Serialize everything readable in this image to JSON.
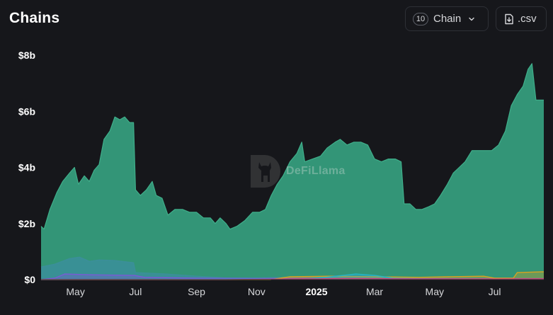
{
  "title": "Chains",
  "controls": {
    "chain_count": "10",
    "chain_label": "Chain",
    "csv_label": ".csv"
  },
  "watermark": "DeFiLlama",
  "colors": {
    "background": "#16171b",
    "main_series": "#339577",
    "secondary_series": "#3b8f9a"
  },
  "chart_data": {
    "type": "area",
    "title": "",
    "xlabel": "",
    "ylabel": "",
    "ylim": [
      0,
      8
    ],
    "y_unit": "billions USD",
    "y_ticks": [
      "$0",
      "$2b",
      "$4b",
      "$6b",
      "$8b"
    ],
    "x_ticks": [
      "May",
      "Jul",
      "Sep",
      "Nov",
      "2025",
      "Mar",
      "May",
      "Jul"
    ],
    "x_range": [
      "2024-03-27",
      "2025-08-20"
    ],
    "grid": false,
    "legend": "none",
    "series": [
      {
        "color": "#339577",
        "points": [
          [
            "2024-03-27",
            1.9
          ],
          [
            "2024-03-30",
            1.8
          ],
          [
            "2024-04-05",
            2.5
          ],
          [
            "2024-04-12",
            3.1
          ],
          [
            "2024-04-18",
            3.5
          ],
          [
            "2024-04-25",
            3.8
          ],
          [
            "2024-04-30",
            4.0
          ],
          [
            "2024-05-04",
            3.4
          ],
          [
            "2024-05-10",
            3.7
          ],
          [
            "2024-05-15",
            3.5
          ],
          [
            "2024-05-20",
            3.9
          ],
          [
            "2024-05-25",
            4.1
          ],
          [
            "2024-05-30",
            5.0
          ],
          [
            "2024-06-05",
            5.3
          ],
          [
            "2024-06-10",
            5.8
          ],
          [
            "2024-06-15",
            5.7
          ],
          [
            "2024-06-20",
            5.8
          ],
          [
            "2024-06-25",
            5.6
          ],
          [
            "2024-06-29",
            5.6
          ],
          [
            "2024-07-01",
            3.2
          ],
          [
            "2024-07-06",
            3.0
          ],
          [
            "2024-07-12",
            3.2
          ],
          [
            "2024-07-18",
            3.5
          ],
          [
            "2024-07-22",
            3.0
          ],
          [
            "2024-07-28",
            2.9
          ],
          [
            "2024-08-03",
            2.3
          ],
          [
            "2024-08-10",
            2.5
          ],
          [
            "2024-08-18",
            2.5
          ],
          [
            "2024-08-25",
            2.4
          ],
          [
            "2024-09-01",
            2.4
          ],
          [
            "2024-09-08",
            2.2
          ],
          [
            "2024-09-15",
            2.2
          ],
          [
            "2024-09-20",
            2.0
          ],
          [
            "2024-09-25",
            2.2
          ],
          [
            "2024-10-01",
            2.0
          ],
          [
            "2024-10-05",
            1.8
          ],
          [
            "2024-10-12",
            1.9
          ],
          [
            "2024-10-20",
            2.1
          ],
          [
            "2024-10-28",
            2.4
          ],
          [
            "2024-11-04",
            2.4
          ],
          [
            "2024-11-10",
            2.5
          ],
          [
            "2024-11-16",
            3.0
          ],
          [
            "2024-11-22",
            3.4
          ],
          [
            "2024-11-28",
            3.7
          ],
          [
            "2024-12-05",
            4.2
          ],
          [
            "2024-12-12",
            4.5
          ],
          [
            "2024-12-17",
            4.9
          ],
          [
            "2024-12-20",
            4.2
          ],
          [
            "2024-12-28",
            4.3
          ],
          [
            "2025-01-05",
            4.4
          ],
          [
            "2025-01-12",
            4.7
          ],
          [
            "2025-01-20",
            4.9
          ],
          [
            "2025-01-25",
            5.0
          ],
          [
            "2025-02-01",
            4.8
          ],
          [
            "2025-02-08",
            4.9
          ],
          [
            "2025-02-15",
            4.9
          ],
          [
            "2025-02-22",
            4.8
          ],
          [
            "2025-03-01",
            4.3
          ],
          [
            "2025-03-08",
            4.2
          ],
          [
            "2025-03-15",
            4.3
          ],
          [
            "2025-03-22",
            4.3
          ],
          [
            "2025-03-28",
            4.2
          ],
          [
            "2025-03-31",
            2.7
          ],
          [
            "2025-04-06",
            2.7
          ],
          [
            "2025-04-12",
            2.5
          ],
          [
            "2025-04-18",
            2.5
          ],
          [
            "2025-04-25",
            2.6
          ],
          [
            "2025-05-01",
            2.7
          ],
          [
            "2025-05-07",
            3.0
          ],
          [
            "2025-05-14",
            3.4
          ],
          [
            "2025-05-20",
            3.8
          ],
          [
            "2025-05-26",
            4.0
          ],
          [
            "2025-06-01",
            4.2
          ],
          [
            "2025-06-08",
            4.6
          ],
          [
            "2025-06-15",
            4.6
          ],
          [
            "2025-06-22",
            4.6
          ],
          [
            "2025-06-28",
            4.6
          ],
          [
            "2025-07-05",
            4.8
          ],
          [
            "2025-07-12",
            5.3
          ],
          [
            "2025-07-18",
            6.2
          ],
          [
            "2025-07-24",
            6.6
          ],
          [
            "2025-07-30",
            6.9
          ],
          [
            "2025-08-04",
            7.5
          ],
          [
            "2025-08-08",
            7.7
          ],
          [
            "2025-08-12",
            6.4
          ],
          [
            "2025-08-20",
            6.4
          ]
        ]
      },
      {
        "color": "#3b8f9a",
        "points": [
          [
            "2024-03-27",
            0.45
          ],
          [
            "2024-04-10",
            0.55
          ],
          [
            "2024-04-25",
            0.75
          ],
          [
            "2024-05-05",
            0.8
          ],
          [
            "2024-05-15",
            0.65
          ],
          [
            "2024-05-25",
            0.7
          ],
          [
            "2024-06-10",
            0.68
          ],
          [
            "2024-06-29",
            0.6
          ],
          [
            "2024-07-01",
            0.25
          ],
          [
            "2024-08-01",
            0.2
          ],
          [
            "2024-09-01",
            0.12
          ],
          [
            "2024-10-01",
            0.06
          ],
          [
            "2024-11-01",
            0.06
          ],
          [
            "2024-12-01",
            0.08
          ],
          [
            "2025-01-01",
            0.1
          ],
          [
            "2025-02-01",
            0.15
          ],
          [
            "2025-03-01",
            0.12
          ],
          [
            "2025-04-01",
            0.06
          ],
          [
            "2025-05-01",
            0.06
          ],
          [
            "2025-06-01",
            0.05
          ],
          [
            "2025-07-01",
            0.05
          ],
          [
            "2025-08-20",
            0.05
          ]
        ]
      },
      {
        "color": "#7b59d6",
        "points": [
          [
            "2024-03-27",
            0.0
          ],
          [
            "2024-04-10",
            0.05
          ],
          [
            "2024-04-20",
            0.2
          ],
          [
            "2024-05-20",
            0.17
          ],
          [
            "2024-06-30",
            0.15
          ],
          [
            "2024-07-10",
            0.08
          ],
          [
            "2024-09-01",
            0.05
          ],
          [
            "2024-11-01",
            0.04
          ],
          [
            "2025-01-01",
            0.05
          ],
          [
            "2025-03-01",
            0.04
          ],
          [
            "2025-05-01",
            0.03
          ],
          [
            "2025-08-20",
            0.03
          ]
        ]
      },
      {
        "color": "#d8a31f",
        "points": [
          [
            "2024-03-27",
            0.0
          ],
          [
            "2024-11-15",
            0.0
          ],
          [
            "2024-12-05",
            0.1
          ],
          [
            "2025-01-15",
            0.12
          ],
          [
            "2025-03-01",
            0.1
          ],
          [
            "2025-04-15",
            0.08
          ],
          [
            "2025-05-15",
            0.1
          ],
          [
            "2025-06-20",
            0.12
          ],
          [
            "2025-07-01",
            0.05
          ],
          [
            "2025-07-20",
            0.05
          ],
          [
            "2025-07-24",
            0.25
          ],
          [
            "2025-08-20",
            0.28
          ]
        ]
      },
      {
        "color": "#23b5c8",
        "points": [
          [
            "2024-03-27",
            0.0
          ],
          [
            "2024-12-20",
            0.02
          ],
          [
            "2025-01-10",
            0.08
          ],
          [
            "2025-02-10",
            0.2
          ],
          [
            "2025-03-01",
            0.15
          ],
          [
            "2025-03-20",
            0.05
          ],
          [
            "2025-05-01",
            0.02
          ],
          [
            "2025-08-20",
            0.02
          ]
        ]
      },
      {
        "color": "#c9427a",
        "points": [
          [
            "2024-03-27",
            0.0
          ],
          [
            "2024-10-01",
            0.0
          ],
          [
            "2024-12-01",
            0.02
          ],
          [
            "2025-02-01",
            0.04
          ],
          [
            "2025-04-01",
            0.03
          ],
          [
            "2025-06-01",
            0.02
          ],
          [
            "2025-08-20",
            0.03
          ]
        ]
      }
    ]
  }
}
